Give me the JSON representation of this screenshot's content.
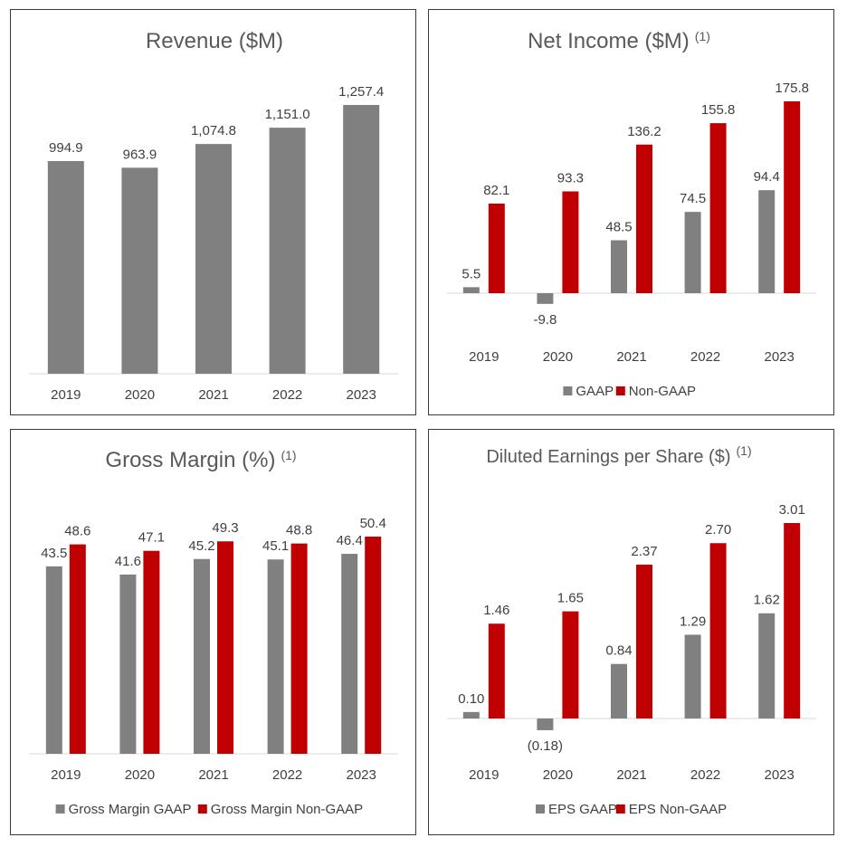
{
  "charts": {
    "revenue": {
      "type": "bar",
      "title": "Revenue ($M)",
      "title_sup": "",
      "categories": [
        "2019",
        "2020",
        "2021",
        "2022",
        "2023"
      ],
      "series": [
        {
          "name": "Revenue",
          "values": [
            994.9,
            963.9,
            1074.8,
            1151.0,
            1257.4
          ],
          "labels": [
            "994.9",
            "963.9",
            "1,074.8",
            "1,151.0",
            "1,257.4"
          ]
        }
      ],
      "ylim": [
        0,
        1257.4
      ],
      "legend": []
    },
    "net_income": {
      "type": "bar",
      "title": "Net Income ($M)",
      "title_sup": "(1)",
      "categories": [
        "2019",
        "2020",
        "2021",
        "2022",
        "2023"
      ],
      "series": [
        {
          "name": "GAAP",
          "values": [
            5.5,
            -9.8,
            48.5,
            74.5,
            94.4
          ],
          "labels": [
            "5.5",
            "-9.8",
            "48.5",
            "74.5",
            "94.4"
          ]
        },
        {
          "name": "Non-GAAP",
          "values": [
            82.1,
            93.3,
            136.2,
            155.8,
            175.8
          ],
          "labels": [
            "82.1",
            "93.3",
            "136.2",
            "155.8",
            "175.8"
          ]
        }
      ],
      "ylim": [
        -9.8,
        175.8
      ],
      "legend": [
        "GAAP",
        "Non-GAAP"
      ]
    },
    "gross_margin": {
      "type": "bar",
      "title": "Gross Margin (%)",
      "title_sup": "(1)",
      "categories": [
        "2019",
        "2020",
        "2021",
        "2022",
        "2023"
      ],
      "series": [
        {
          "name": "Gross Margin GAAP",
          "values": [
            43.5,
            41.6,
            45.2,
            45.1,
            46.4
          ],
          "labels": [
            "43.5",
            "41.6",
            "45.2",
            "45.1",
            "46.4"
          ]
        },
        {
          "name": "Gross Margin Non-GAAP",
          "values": [
            48.6,
            47.1,
            49.3,
            48.8,
            50.4
          ],
          "labels": [
            "48.6",
            "47.1",
            "49.3",
            "48.8",
            "50.4"
          ]
        }
      ],
      "ylim": [
        0,
        50.4
      ],
      "legend": [
        "Gross Margin GAAP",
        "Gross Margin Non-GAAP"
      ]
    },
    "eps": {
      "type": "bar",
      "title": "Diluted Earnings per Share ($)",
      "title_sup": "(1)",
      "categories": [
        "2019",
        "2020",
        "2021",
        "2022",
        "2023"
      ],
      "series": [
        {
          "name": "EPS GAAP",
          "values": [
            0.1,
            -0.18,
            0.84,
            1.29,
            1.62
          ],
          "labels": [
            "0.10",
            "(0.18)",
            "0.84",
            "1.29",
            "1.62"
          ]
        },
        {
          "name": "EPS Non-GAAP",
          "values": [
            1.46,
            1.65,
            2.37,
            2.7,
            3.01
          ],
          "labels": [
            "1.46",
            "1.65",
            "2.37",
            "2.70",
            "3.01"
          ]
        }
      ],
      "ylim": [
        -0.18,
        3.01
      ],
      "legend": [
        "EPS GAAP",
        "EPS Non-GAAP"
      ]
    }
  },
  "colors": {
    "gaap": "#808080",
    "non_gaap": "#c00000",
    "text": "#404040",
    "title": "#595959",
    "axis": "#d9d9d9"
  }
}
